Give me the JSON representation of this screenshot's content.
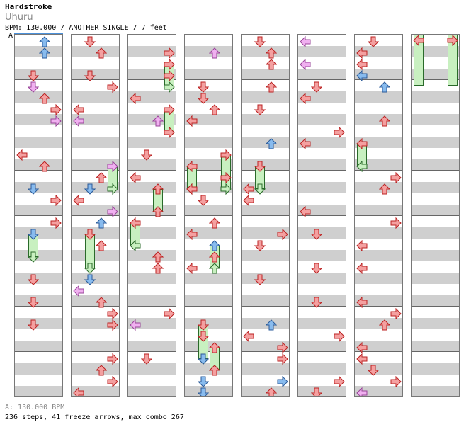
{
  "header": {
    "artist": "Hardstroke",
    "title": "Uhuru",
    "meta": "BPM: 130.000 / ANOTHER SINGLE / 7 feet",
    "section_marker": "A"
  },
  "footer": {
    "bpm_line": "A: 130.000 BPM",
    "stats_line": "236 steps, 41 freeze arrows, max combo 267"
  },
  "chart_data": {
    "type": "step-chart",
    "bpm": 130,
    "difficulty": "ANOTHER",
    "mode": "SINGLE",
    "feet": 7,
    "columns": 8,
    "measures_per_column": 8,
    "lanes": [
      "left",
      "down",
      "up",
      "right"
    ],
    "lane_colors": {
      "left": "#f4a0a0",
      "down": "#f4a0a0",
      "up": "#f4a0a0",
      "right": "#f4a0a0",
      "blue": "#88bbee",
      "pink": "#f0b0f0",
      "green": "#c8f0c0"
    },
    "total_steps": 236,
    "freeze_arrows": 41,
    "max_combo": 267
  }
}
